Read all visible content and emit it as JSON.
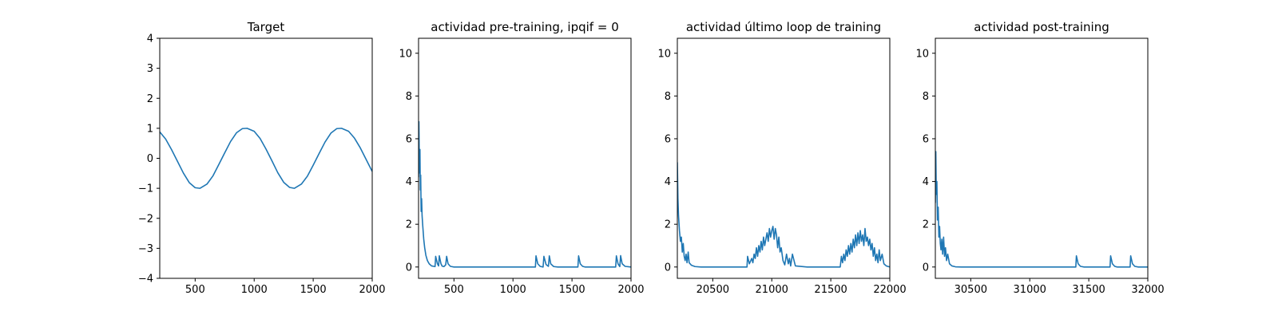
{
  "chart_data": [
    {
      "type": "line",
      "title": "Target",
      "xlabel": "",
      "ylabel": "",
      "xlim": [
        200,
        2000
      ],
      "ylim": [
        -4,
        4
      ],
      "xticks": [
        500,
        1000,
        1500,
        2000
      ],
      "xtick_labels": [
        "500",
        "1000",
        "1500",
        "2000"
      ],
      "yticks": [
        -4,
        -3,
        -2,
        -1,
        0,
        1,
        2,
        3,
        4
      ],
      "ytick_labels": [
        "−4",
        "−3",
        "−2",
        "−1",
        "0",
        "1",
        "2",
        "3",
        "4"
      ],
      "grid": false,
      "color": "#1f77b4",
      "series": [
        {
          "x": [
            200,
            250,
            300,
            350,
            400,
            450,
            500,
            540,
            600,
            650,
            700,
            750,
            800,
            850,
            900,
            940,
            1000,
            1050,
            1100,
            1150,
            1200,
            1250,
            1300,
            1340,
            1400,
            1450,
            1500,
            1550,
            1600,
            1650,
            1700,
            1740,
            1800,
            1850,
            1900,
            1950,
            2000
          ],
          "y": [
            0.88,
            0.64,
            0.29,
            -0.1,
            -0.49,
            -0.81,
            -0.98,
            -1.0,
            -0.86,
            -0.59,
            -0.21,
            0.18,
            0.56,
            0.85,
            0.99,
            1.0,
            0.9,
            0.66,
            0.31,
            -0.08,
            -0.48,
            -0.8,
            -0.97,
            -1.0,
            -0.86,
            -0.6,
            -0.23,
            0.16,
            0.54,
            0.84,
            0.99,
            1.0,
            0.9,
            0.67,
            0.34,
            -0.05,
            -0.44
          ]
        }
      ]
    },
    {
      "type": "line",
      "title": "actividad pre-training, ipqif = 0",
      "xlabel": "",
      "ylabel": "",
      "xlim": [
        200,
        2000
      ],
      "ylim": [
        -0.53,
        10.7
      ],
      "xticks": [
        500,
        1000,
        1500,
        2000
      ],
      "xtick_labels": [
        "500",
        "1000",
        "1500",
        "2000"
      ],
      "yticks": [
        0,
        2,
        4,
        6,
        8,
        10
      ],
      "ytick_labels": [
        "0",
        "2",
        "4",
        "6",
        "8",
        "10"
      ],
      "grid": false,
      "color": "#1f77b4",
      "series": [
        {
          "x": [
            200,
            203,
            206,
            209,
            212,
            215,
            218,
            222,
            226,
            230,
            236,
            244,
            252,
            262,
            275,
            290,
            310,
            340,
            345,
            360,
            370,
            376,
            390,
            400,
            415,
            430,
            438,
            450,
            470,
            500,
            700,
            900,
            1190,
            1195,
            1210,
            1230,
            1255,
            1262,
            1280,
            1300,
            1308,
            1320,
            1345,
            1380,
            1550,
            1556,
            1570,
            1590,
            1610,
            1700,
            1870,
            1876,
            1890,
            1905,
            1912,
            1925,
            1950,
            2000
          ],
          "y": [
            4.2,
            6.8,
            5.1,
            4.4,
            5.5,
            3.6,
            4.3,
            2.6,
            3.2,
            2.4,
            1.9,
            1.3,
            0.9,
            0.55,
            0.3,
            0.15,
            0.05,
            0.02,
            0.5,
            0.15,
            0.05,
            0.52,
            0.15,
            0.04,
            0.02,
            0.1,
            0.5,
            0.15,
            0.03,
            0.0,
            0.0,
            0.0,
            0.0,
            0.52,
            0.15,
            0.03,
            0.0,
            0.5,
            0.12,
            0.03,
            0.52,
            0.15,
            0.02,
            0.0,
            0.0,
            0.52,
            0.15,
            0.03,
            0.0,
            0.0,
            0.0,
            0.52,
            0.15,
            0.02,
            0.53,
            0.15,
            0.03,
            0.0
          ]
        }
      ]
    },
    {
      "type": "line",
      "title": "actividad último loop de training",
      "xlabel": "",
      "ylabel": "",
      "xlim": [
        20200,
        22000
      ],
      "ylim": [
        -0.53,
        10.7
      ],
      "xticks": [
        20500,
        21000,
        21500,
        22000
      ],
      "xtick_labels": [
        "20500",
        "21000",
        "21500",
        "22000"
      ],
      "yticks": [
        0,
        2,
        4,
        6,
        8,
        10
      ],
      "ytick_labels": [
        "0",
        "2",
        "4",
        "6",
        "8",
        "10"
      ],
      "grid": false,
      "color": "#1f77b4",
      "series": [
        {
          "x": [
            20200,
            20205,
            20210,
            20218,
            20226,
            20234,
            20242,
            20250,
            20258,
            20266,
            20274,
            20282,
            20292,
            20300,
            20320,
            20350,
            20400,
            20600,
            20790,
            20795,
            20810,
            20830,
            20840,
            20850,
            20860,
            20870,
            20880,
            20890,
            20900,
            20910,
            20920,
            20930,
            20940,
            20950,
            20960,
            20970,
            20980,
            20990,
            21000,
            21010,
            21020,
            21030,
            21040,
            21050,
            21060,
            21070,
            21080,
            21095,
            21110,
            21125,
            21140,
            21150,
            21160,
            21175,
            21200,
            21300,
            21580,
            21590,
            21600,
            21610,
            21620,
            21630,
            21640,
            21650,
            21660,
            21670,
            21680,
            21690,
            21700,
            21710,
            21720,
            21730,
            21740,
            21750,
            21760,
            21770,
            21780,
            21790,
            21800,
            21810,
            21820,
            21830,
            21840,
            21850,
            21860,
            21870,
            21880,
            21890,
            21900,
            21910,
            21920,
            21935,
            21950,
            21970,
            22000
          ],
          "y": [
            4.9,
            3.2,
            2.4,
            1.7,
            1.2,
            1.4,
            0.7,
            1.1,
            0.5,
            0.3,
            0.6,
            0.2,
            0.7,
            0.2,
            0.08,
            0.02,
            0.0,
            0.0,
            0.0,
            0.5,
            0.15,
            0.4,
            0.2,
            0.6,
            0.4,
            0.9,
            0.5,
            1.0,
            0.7,
            1.2,
            0.8,
            1.4,
            1.0,
            1.3,
            1.6,
            1.2,
            1.8,
            1.4,
            1.7,
            1.9,
            1.3,
            1.8,
            1.5,
            0.9,
            1.4,
            0.7,
            0.9,
            0.3,
            0.1,
            0.6,
            0.15,
            0.4,
            0.05,
            0.6,
            0.05,
            0.0,
            0.0,
            0.5,
            0.2,
            0.6,
            0.3,
            0.8,
            0.5,
            1.0,
            0.6,
            1.1,
            0.7,
            1.3,
            0.9,
            1.5,
            1.0,
            1.6,
            1.1,
            1.7,
            1.2,
            1.5,
            1.0,
            1.8,
            1.2,
            1.4,
            1.0,
            1.3,
            0.8,
            1.1,
            0.5,
            0.9,
            0.3,
            0.6,
            0.2,
            0.8,
            0.3,
            0.6,
            0.15,
            0.05,
            0.0
          ]
        }
      ]
    },
    {
      "type": "line",
      "title": "actividad post-training",
      "xlabel": "",
      "ylabel": "",
      "xlim": [
        30200,
        32000
      ],
      "ylim": [
        -0.53,
        10.7
      ],
      "xticks": [
        30500,
        31000,
        31500,
        32000
      ],
      "xtick_labels": [
        "30500",
        "31000",
        "31500",
        "32000"
      ],
      "yticks": [
        0,
        2,
        4,
        6,
        8,
        10
      ],
      "ytick_labels": [
        "0",
        "2",
        "4",
        "6",
        "8",
        "10"
      ],
      "grid": false,
      "color": "#1f77b4",
      "series": [
        {
          "x": [
            30200,
            30204,
            30208,
            30213,
            30218,
            30224,
            30230,
            30236,
            30242,
            30248,
            30255,
            30262,
            30270,
            30278,
            30286,
            30295,
            30305,
            30320,
            30340,
            30370,
            30420,
            30600,
            31390,
            31395,
            31410,
            31430,
            31460,
            31680,
            31685,
            31700,
            31720,
            31740,
            31850,
            31855,
            31870,
            31890,
            31920,
            32000
          ],
          "y": [
            3.0,
            5.4,
            3.4,
            4.0,
            2.2,
            2.8,
            1.4,
            1.9,
            1.1,
            0.8,
            1.3,
            0.6,
            1.4,
            0.5,
            0.9,
            0.3,
            0.6,
            0.15,
            0.05,
            0.01,
            0.0,
            0.0,
            0.0,
            0.52,
            0.15,
            0.03,
            0.0,
            0.0,
            0.52,
            0.15,
            0.03,
            0.0,
            0.0,
            0.52,
            0.15,
            0.03,
            0.0,
            0.0
          ]
        }
      ]
    }
  ]
}
